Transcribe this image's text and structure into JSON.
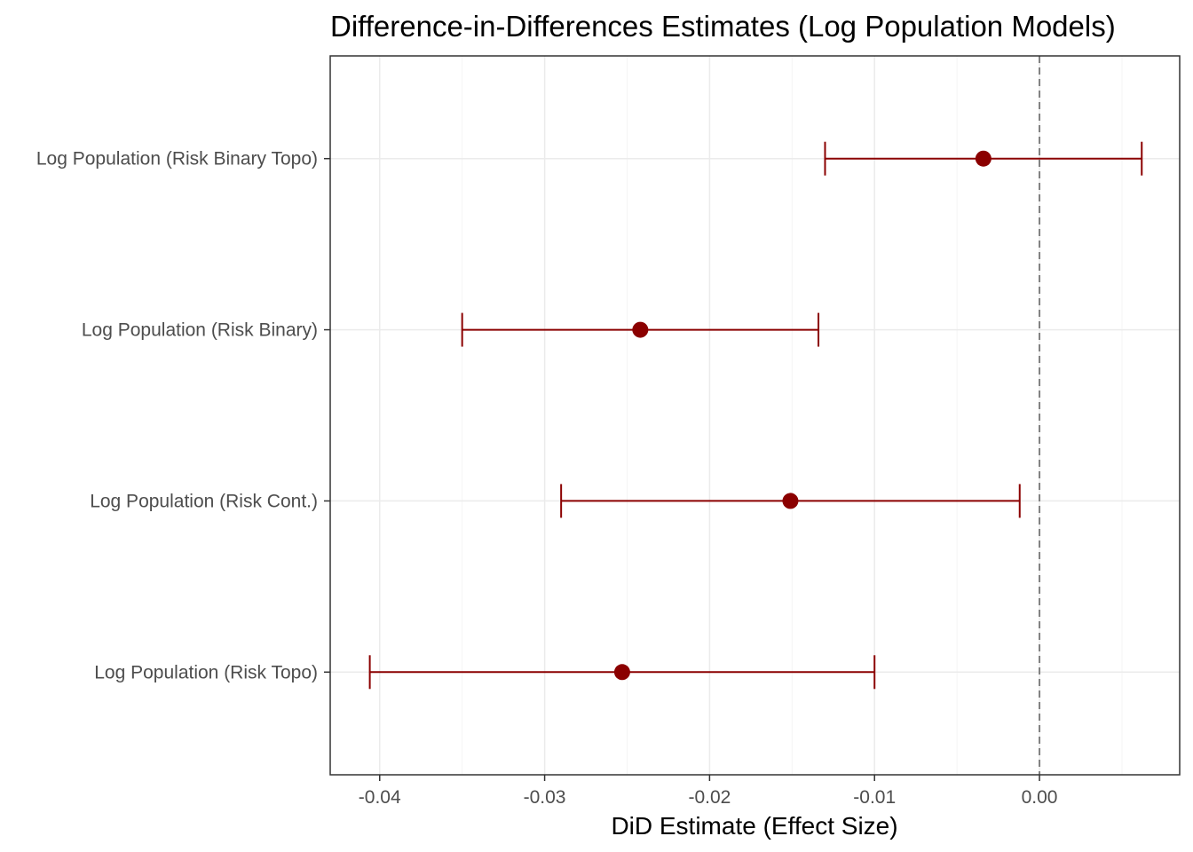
{
  "chart_data": {
    "type": "forest",
    "title": "Difference-in-Differences Estimates (Log Population Models)",
    "xlabel": "DiD Estimate (Effect Size)",
    "ylabel": "",
    "xlim": [
      -0.043,
      0.0085
    ],
    "x_ticks": [
      -0.04,
      -0.03,
      -0.02,
      -0.01,
      0.0
    ],
    "x_tick_labels": [
      "-0.04",
      "-0.03",
      "-0.02",
      "-0.01",
      "0.00"
    ],
    "reference_line": 0.0,
    "grid": true,
    "colors": {
      "point": "#8b0000",
      "errorbar": "#8b0000",
      "reference": "#808080",
      "grid": "#ebebeb"
    },
    "rows": [
      {
        "label": "Log Population (Risk Binary Topo)",
        "estimate": -0.0034,
        "lower": -0.013,
        "upper": 0.0062
      },
      {
        "label": "Log Population (Risk Binary)",
        "estimate": -0.0242,
        "lower": -0.035,
        "upper": -0.0134
      },
      {
        "label": "Log Population (Risk Cont.)",
        "estimate": -0.0151,
        "lower": -0.029,
        "upper": -0.0012
      },
      {
        "label": "Log Population (Risk Topo)",
        "estimate": -0.0253,
        "lower": -0.0406,
        "upper": -0.01
      }
    ]
  }
}
